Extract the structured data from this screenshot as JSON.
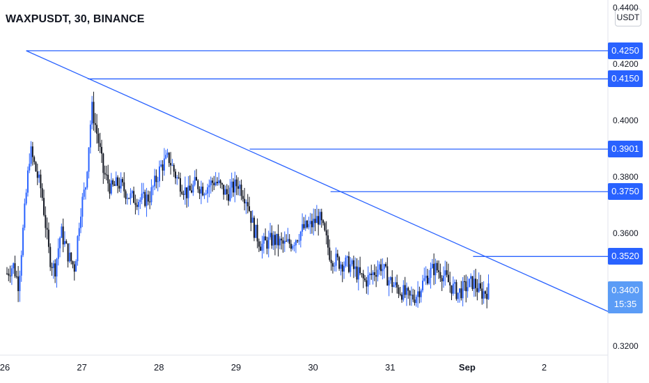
{
  "header": {
    "title": "WAXPUSDT, 30, BINANCE",
    "unit": "USDT"
  },
  "colors": {
    "up": "#2962ff",
    "down": "#131722",
    "line": "#2962ff",
    "tag": "#2962ff",
    "current_tag": "#5b9cf6"
  },
  "chart_data": {
    "type": "candlestick",
    "title": "WAXPUSDT, 30, BINANCE",
    "ylabel": "USDT",
    "ylim": [
      0.317,
      0.443
    ],
    "y_ticks": [
      {
        "value": 0.44,
        "label": "0.4400"
      },
      {
        "value": 0.42,
        "label": "0.4200"
      },
      {
        "value": 0.4,
        "label": "0.4000"
      },
      {
        "value": 0.38,
        "label": "0.3800"
      },
      {
        "value": 0.36,
        "label": "0.3600"
      },
      {
        "value": 0.32,
        "label": "0.3200"
      }
    ],
    "x_ticks": [
      {
        "label": "26",
        "pos": 0.0
      },
      {
        "label": "27",
        "pos": 1.0
      },
      {
        "label": "28",
        "pos": 2.0
      },
      {
        "label": "29",
        "pos": 3.0
      },
      {
        "label": "30",
        "pos": 4.0
      },
      {
        "label": "31",
        "pos": 5.0
      },
      {
        "label": "Sep",
        "pos": 6.0,
        "bold": true
      },
      {
        "label": "2",
        "pos": 7.0
      }
    ],
    "xlim": [
      0.0,
      7.8
    ],
    "price_levels": [
      {
        "value": 0.425,
        "label": "0.4250",
        "from": 0.25
      },
      {
        "value": 0.415,
        "label": "0.4150",
        "from": 1.05
      },
      {
        "value": 0.3901,
        "label": "0.3901",
        "from": 3.15
      },
      {
        "value": 0.375,
        "label": "0.3750",
        "from": 4.2
      },
      {
        "value": 0.352,
        "label": "0.3520",
        "from": 6.05
      }
    ],
    "trendline": {
      "x1": 0.25,
      "y1": 0.425,
      "x2": 7.8,
      "y2": 0.3325
    },
    "current_price": {
      "value": 0.34,
      "label": "0.3400",
      "countdown": "15:35"
    },
    "price_path": [
      [
        0.0,
        0.346
      ],
      [
        0.08,
        0.349
      ],
      [
        0.15,
        0.342
      ],
      [
        0.22,
        0.365
      ],
      [
        0.3,
        0.39
      ],
      [
        0.38,
        0.382
      ],
      [
        0.45,
        0.375
      ],
      [
        0.55,
        0.352
      ],
      [
        0.62,
        0.347
      ],
      [
        0.7,
        0.361
      ],
      [
        0.8,
        0.352
      ],
      [
        0.88,
        0.348
      ],
      [
        0.95,
        0.368
      ],
      [
        1.02,
        0.377
      ],
      [
        1.1,
        0.405
      ],
      [
        1.18,
        0.394
      ],
      [
        1.25,
        0.382
      ],
      [
        1.35,
        0.376
      ],
      [
        1.45,
        0.378
      ],
      [
        1.6,
        0.373
      ],
      [
        1.75,
        0.372
      ],
      [
        1.85,
        0.373
      ],
      [
        2.0,
        0.384
      ],
      [
        2.1,
        0.387
      ],
      [
        2.2,
        0.38
      ],
      [
        2.35,
        0.374
      ],
      [
        2.45,
        0.378
      ],
      [
        2.55,
        0.376
      ],
      [
        2.7,
        0.379
      ],
      [
        2.85,
        0.374
      ],
      [
        3.0,
        0.378
      ],
      [
        3.12,
        0.372
      ],
      [
        3.2,
        0.362
      ],
      [
        3.3,
        0.356
      ],
      [
        3.45,
        0.358
      ],
      [
        3.6,
        0.356
      ],
      [
        3.7,
        0.357
      ],
      [
        3.85,
        0.362
      ],
      [
        3.95,
        0.363
      ],
      [
        4.05,
        0.366
      ],
      [
        4.12,
        0.36
      ],
      [
        4.2,
        0.352
      ],
      [
        4.3,
        0.35
      ],
      [
        4.45,
        0.349
      ],
      [
        4.55,
        0.346
      ],
      [
        4.65,
        0.343
      ],
      [
        4.75,
        0.346
      ],
      [
        4.85,
        0.349
      ],
      [
        4.95,
        0.344
      ],
      [
        5.05,
        0.341
      ],
      [
        5.15,
        0.339
      ],
      [
        5.22,
        0.337
      ],
      [
        5.3,
        0.338
      ],
      [
        5.45,
        0.345
      ],
      [
        5.55,
        0.348
      ],
      [
        5.65,
        0.346
      ],
      [
        5.75,
        0.342
      ],
      [
        5.85,
        0.339
      ],
      [
        5.95,
        0.341
      ],
      [
        6.05,
        0.343
      ],
      [
        6.15,
        0.339
      ],
      [
        6.25,
        0.34
      ]
    ]
  }
}
